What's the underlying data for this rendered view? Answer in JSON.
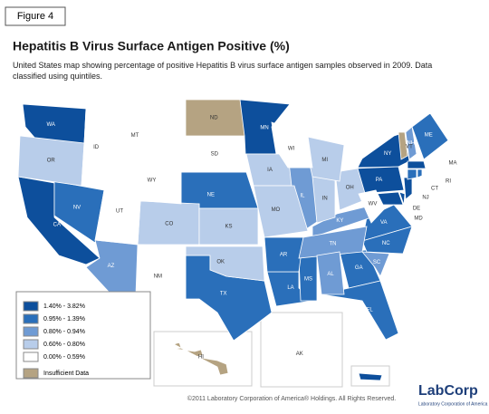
{
  "figure_label": "Figure 4",
  "title": "Hepatitis B Virus Surface Antigen Positive (%)",
  "subtitle": "United States map showing percentage of positive Hepatitis B virus surface antigen samples observed in 2009.  Data classified using quintiles.",
  "legend": [
    {
      "label": "1.40% - 3.82%",
      "color": "#0d4f9c",
      "states": [
        "WA",
        "MN",
        "CA",
        "NY",
        "PA",
        "NJ",
        "MA",
        "MD",
        "DE",
        null
      ]
    },
    {
      "label": "0.95% - 1.39%",
      "color": "#2a6fba",
      "states": [
        "NV",
        "NE",
        "TX",
        "LA",
        "MS",
        "GA",
        "FL",
        "VA",
        "ME",
        "CT",
        "RI",
        "AR",
        "NC"
      ]
    },
    {
      "label": "0.80% - 0.94%",
      "color": "#6f9bd4",
      "states": [
        "AZ",
        "IL",
        "KY",
        "TN",
        "AL",
        "SC",
        "NH"
      ]
    },
    {
      "label": "0.60% - 0.80%",
      "color": "#b8cdea",
      "states": [
        "OR",
        "IA",
        "CO",
        "KS",
        "OK",
        "IN",
        "OH",
        "MI",
        "MO"
      ]
    },
    {
      "label": "0.00% - 0.59%",
      "color": "#ffffff",
      "states": [
        "MT",
        "ID",
        "WY",
        "SD",
        "UT",
        "NM",
        "WI",
        "WV",
        "AK"
      ]
    },
    {
      "label": "Insufficient Data",
      "color": "#b5a382",
      "states": [
        "ND",
        "VT",
        "HI"
      ]
    }
  ],
  "footer": "©2011 Laboratory Corporation of America® Holdings. All Rights Reserved.",
  "logo": {
    "name": "LabCorp",
    "tagline": "Laboratory Corporation of America"
  }
}
